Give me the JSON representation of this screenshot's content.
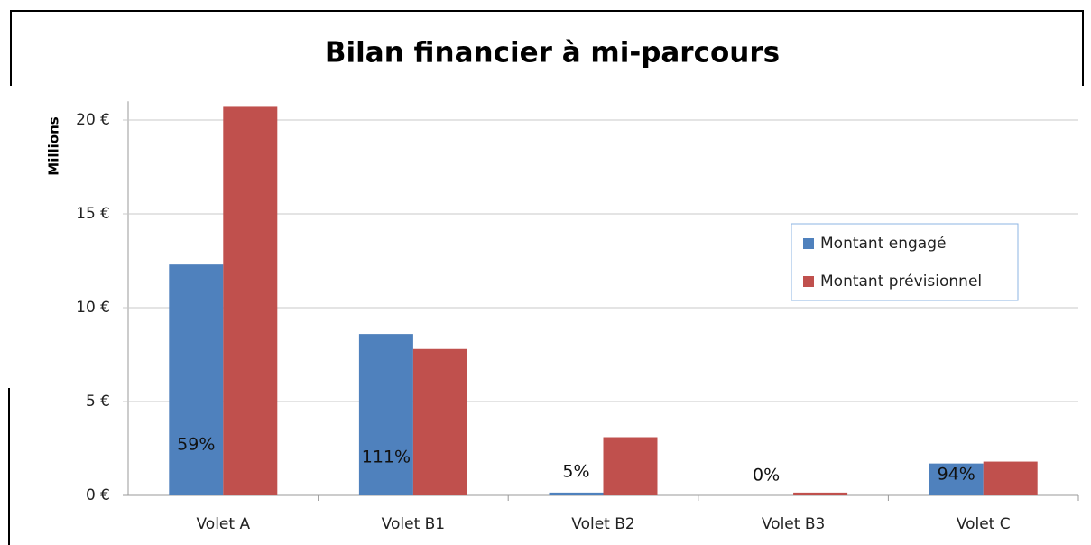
{
  "chart_data": {
    "type": "bar",
    "title": "Bilan financier à mi-parcours",
    "y_axis_label": "Millions",
    "categories": [
      "Volet A",
      "Volet B1",
      "Volet B2",
      "Volet B3",
      "Volet C"
    ],
    "series": [
      {
        "name": "Montant engagé",
        "color": "#4f81bd",
        "values": [
          12.3,
          8.6,
          0.15,
          0,
          1.7
        ]
      },
      {
        "name": "Montant prévisionnel",
        "color": "#c0504d",
        "values": [
          20.7,
          7.8,
          3.1,
          0.15,
          1.8
        ]
      }
    ],
    "annotations": [
      "59%",
      "111%",
      "5%",
      "0%",
      "94%"
    ],
    "ylim": [
      0,
      21
    ],
    "yticks": [
      {
        "value": 0,
        "label": "0 €"
      },
      {
        "value": 5,
        "label": "5 €"
      },
      {
        "value": 10,
        "label": "10 €"
      },
      {
        "value": 15,
        "label": "15 €"
      },
      {
        "value": 20,
        "label": "20 €"
      }
    ],
    "grid": true,
    "legend": "right"
  }
}
